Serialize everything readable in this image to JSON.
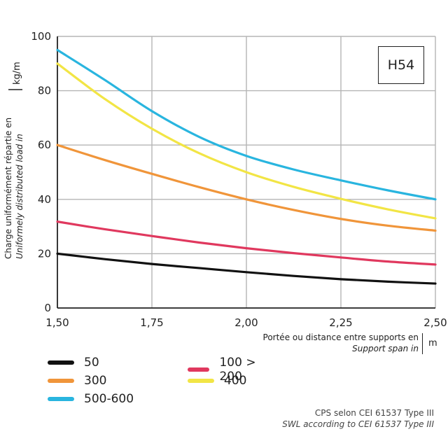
{
  "chart_data": {
    "type": "line",
    "title": "H54",
    "xlabel": "Portée ou distance entre supports en",
    "xlabel_en": "Support span in",
    "xunit": "m",
    "ylabel": "Charge uniformément répartie en",
    "ylabel_en": "Uniformely distributed load in",
    "yunit": "kg/m",
    "xlim": [
      1.5,
      2.5
    ],
    "ylim": [
      0,
      100
    ],
    "x_ticks": [
      1.5,
      1.75,
      2.0,
      2.25,
      2.5
    ],
    "x_tick_labels": [
      "1,50",
      "1,75",
      "2,00",
      "2,25",
      "2,50"
    ],
    "y_ticks": [
      0,
      20,
      40,
      60,
      80,
      100
    ],
    "y_tick_labels": [
      "0",
      "20",
      "40",
      "60",
      "80",
      "100"
    ],
    "grid": true,
    "x": [
      1.5,
      1.625,
      1.75,
      1.875,
      2.0,
      2.125,
      2.25,
      2.375,
      2.5
    ],
    "series": [
      {
        "name": "50",
        "color": "#111111",
        "values": [
          20,
          18,
          16.2,
          14.7,
          13.2,
          11.8,
          10.6,
          9.7,
          9
        ]
      },
      {
        "name": "100 > 200",
        "color": "#e0385e",
        "values": [
          31.8,
          29,
          26.5,
          24.1,
          22,
          20.2,
          18.6,
          17.1,
          16
        ]
      },
      {
        "name": "300",
        "color": "#f0953a",
        "values": [
          60,
          54.5,
          49.4,
          44.5,
          40,
          36.1,
          32.8,
          30.3,
          28.5
        ]
      },
      {
        "name": "400",
        "color": "#f2e545",
        "values": [
          90,
          77,
          66,
          57,
          50,
          44.6,
          40.2,
          36.3,
          33
        ]
      },
      {
        "name": "500-600",
        "color": "#29b5df",
        "values": [
          95,
          84,
          72.5,
          63,
          56,
          51,
          47,
          43.3,
          40
        ]
      }
    ]
  },
  "legend": [
    {
      "label": "50",
      "color": "#111111"
    },
    {
      "label": "100 > 200",
      "color": "#e0385e"
    },
    {
      "label": "300",
      "color": "#f0953a"
    },
    {
      "label": "400",
      "color": "#f2e545"
    },
    {
      "label": "500-600",
      "color": "#29b5df"
    }
  ],
  "note": {
    "fr": "CPS selon CEI 61537 Type III",
    "en": "SWL according to CEI 61537 Type III"
  }
}
